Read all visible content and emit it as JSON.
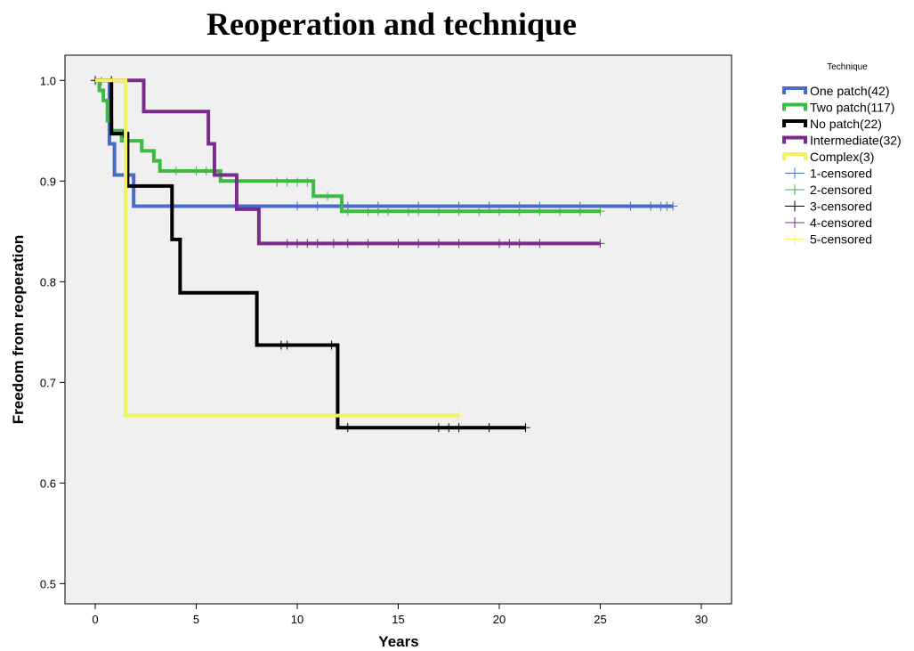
{
  "chart_data": {
    "type": "line",
    "title": "Reoperation and technique",
    "xlabel": "Years",
    "ylabel": "Freedom from reoperation",
    "xlim": [
      -1.5,
      31.5
    ],
    "ylim": [
      0.48,
      1.025
    ],
    "xticks": [
      0,
      5,
      10,
      15,
      20,
      25,
      30
    ],
    "yticks": [
      0.5,
      0.6,
      0.7,
      0.8,
      0.9,
      1.0
    ],
    "ytick_labels": [
      "0.5",
      "0.6",
      "0.7",
      "0.8",
      "0.9",
      "1.0"
    ],
    "grid": false,
    "legend_title": "Technique",
    "legend_position": "right",
    "series": [
      {
        "name": "One patch(42)",
        "color": "#4a6cc8",
        "steps": [
          [
            0,
            1.0
          ],
          [
            0.7,
            0.937
          ],
          [
            0.95,
            0.906
          ],
          [
            1.9,
            0.875
          ],
          [
            28.6,
            0.875
          ]
        ],
        "censored": [
          [
            0.3,
            0.999
          ],
          [
            10,
            0.875
          ],
          [
            11,
            0.875
          ],
          [
            12.5,
            0.875
          ],
          [
            14,
            0.875
          ],
          [
            16,
            0.875
          ],
          [
            18,
            0.875
          ],
          [
            19.5,
            0.875
          ],
          [
            21,
            0.875
          ],
          [
            22,
            0.875
          ],
          [
            24,
            0.875
          ],
          [
            26.5,
            0.875
          ],
          [
            27.5,
            0.875
          ],
          [
            28,
            0.875
          ],
          [
            28.3,
            0.875
          ],
          [
            28.6,
            0.875
          ]
        ]
      },
      {
        "name": "Two patch(117)",
        "color": "#3dba44",
        "steps": [
          [
            0,
            1.0
          ],
          [
            0.2,
            0.99
          ],
          [
            0.4,
            0.98
          ],
          [
            0.6,
            0.96
          ],
          [
            0.8,
            0.95
          ],
          [
            1.3,
            0.94
          ],
          [
            2.3,
            0.93
          ],
          [
            2.9,
            0.92
          ],
          [
            3.2,
            0.91
          ],
          [
            6.2,
            0.9
          ],
          [
            10.8,
            0.885
          ],
          [
            12.2,
            0.87
          ],
          [
            25,
            0.87
          ]
        ],
        "censored": [
          [
            4,
            0.91
          ],
          [
            5,
            0.91
          ],
          [
            5.5,
            0.91
          ],
          [
            9,
            0.899
          ],
          [
            9.5,
            0.899
          ],
          [
            10,
            0.899
          ],
          [
            10.5,
            0.899
          ],
          [
            11.5,
            0.885
          ],
          [
            12.5,
            0.87
          ],
          [
            13.5,
            0.87
          ],
          [
            14,
            0.87
          ],
          [
            14.5,
            0.87
          ],
          [
            15.5,
            0.87
          ],
          [
            16,
            0.87
          ],
          [
            17,
            0.87
          ],
          [
            18,
            0.87
          ],
          [
            19,
            0.87
          ],
          [
            20,
            0.87
          ],
          [
            21,
            0.87
          ],
          [
            22,
            0.87
          ],
          [
            23,
            0.87
          ],
          [
            24,
            0.87
          ],
          [
            25,
            0.87
          ]
        ]
      },
      {
        "name": "No patch(22)",
        "color": "#000000",
        "steps": [
          [
            0,
            1.0
          ],
          [
            0.8,
            0.947
          ],
          [
            1.6,
            0.895
          ],
          [
            3.8,
            0.842
          ],
          [
            4.2,
            0.789
          ],
          [
            8,
            0.737
          ],
          [
            12,
            0.655
          ],
          [
            21.3,
            0.655
          ]
        ],
        "censored": [
          [
            0,
            1.0
          ],
          [
            0.8,
            1.0
          ],
          [
            1.4,
            0.947
          ],
          [
            9.2,
            0.737
          ],
          [
            9.5,
            0.737
          ],
          [
            11.7,
            0.737
          ],
          [
            12.5,
            0.655
          ],
          [
            17,
            0.655
          ],
          [
            17.5,
            0.655
          ],
          [
            18,
            0.655
          ],
          [
            19.5,
            0.655
          ],
          [
            21.3,
            0.655
          ]
        ]
      },
      {
        "name": "Intermediate(32)",
        "color": "#7a2c8a",
        "steps": [
          [
            0,
            1.0
          ],
          [
            2.4,
            0.969
          ],
          [
            5.6,
            0.937
          ],
          [
            5.9,
            0.906
          ],
          [
            7,
            0.872
          ],
          [
            8.1,
            0.838
          ],
          [
            25,
            0.838
          ]
        ],
        "censored": [
          [
            9.5,
            0.838
          ],
          [
            10,
            0.838
          ],
          [
            10.5,
            0.838
          ],
          [
            11,
            0.838
          ],
          [
            11.8,
            0.838
          ],
          [
            12.5,
            0.838
          ],
          [
            13.5,
            0.838
          ],
          [
            15,
            0.838
          ],
          [
            16,
            0.838
          ],
          [
            17,
            0.838
          ],
          [
            18,
            0.838
          ],
          [
            20,
            0.838
          ],
          [
            20.5,
            0.838
          ],
          [
            21,
            0.838
          ],
          [
            22,
            0.838
          ],
          [
            25,
            0.838
          ]
        ]
      },
      {
        "name": "Complex(3)",
        "color": "#f2f25a",
        "steps": [
          [
            0,
            1.0
          ],
          [
            1.5,
            0.667
          ],
          [
            18,
            0.667
          ]
        ],
        "censored": [
          [
            18,
            0.667
          ]
        ]
      }
    ],
    "legend_entries": [
      {
        "label": "One patch(42)",
        "color": "#4a6cc8",
        "kind": "line"
      },
      {
        "label": "Two patch(117)",
        "color": "#3dba44",
        "kind": "line"
      },
      {
        "label": "No patch(22)",
        "color": "#000000",
        "kind": "line"
      },
      {
        "label": "Intermediate(32)",
        "color": "#7a2c8a",
        "kind": "line"
      },
      {
        "label": "Complex(3)",
        "color": "#f2f25a",
        "kind": "line"
      },
      {
        "label": "1-censored",
        "color": "#4a6cc8",
        "kind": "cross"
      },
      {
        "label": "2-censored",
        "color": "#3dba44",
        "kind": "cross"
      },
      {
        "label": "3-censored",
        "color": "#000000",
        "kind": "cross"
      },
      {
        "label": "4-censored",
        "color": "#7a2c8a",
        "kind": "cross"
      },
      {
        "label": "5-censored",
        "color": "#f2f25a",
        "kind": "cross"
      }
    ]
  }
}
